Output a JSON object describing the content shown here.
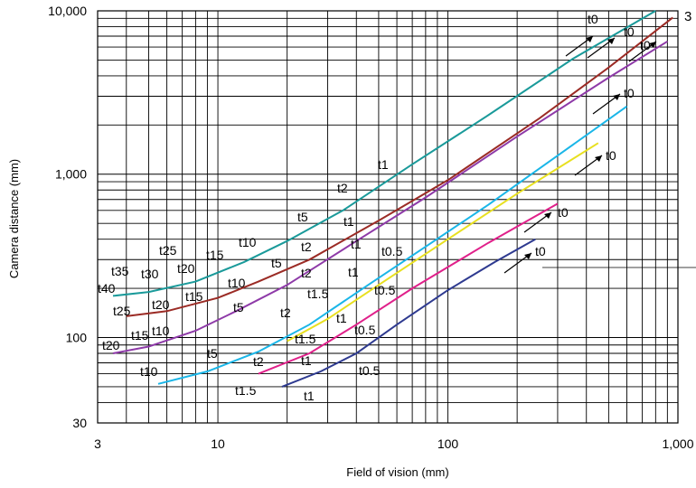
{
  "chart_data": {
    "type": "line",
    "title": "",
    "xlabel": "Field of vision (mm)",
    "ylabel": "Camera distance (mm)",
    "xscale": "log",
    "yscale": "log",
    "xlim": [
      3,
      1000
    ],
    "ylim": [
      30,
      10000
    ],
    "x_ticks": [
      3,
      10,
      100,
      1000
    ],
    "x_tick_labels": [
      "3",
      "10",
      "100",
      "1,000"
    ],
    "y_ticks": [
      30,
      100,
      1000,
      10000
    ],
    "y_tick_labels": [
      "30",
      "100",
      "1,000",
      "10,000"
    ],
    "grid": true,
    "corner_label": "3",
    "series": [
      {
        "color": "#1a9a9a",
        "x": [
          3.5,
          5,
          8,
          13,
          20,
          35,
          70,
          150,
          350,
          800
        ],
        "y": [
          180,
          190,
          220,
          290,
          390,
          600,
          1150,
          2300,
          5100,
          10000
        ]
      },
      {
        "color": "#9b2b25",
        "x": [
          4,
          6,
          10,
          15,
          25,
          50,
          100,
          250,
          500,
          950
        ],
        "y": [
          135,
          145,
          175,
          220,
          300,
          520,
          920,
          2200,
          4500,
          9100
        ]
      },
      {
        "color": "#8e3aa8",
        "x": [
          3.5,
          5,
          8,
          12,
          20,
          40,
          80,
          200,
          500,
          900
        ],
        "y": [
          80,
          88,
          110,
          145,
          210,
          390,
          720,
          1700,
          3900,
          6500
        ]
      },
      {
        "color": "#1ab6e8",
        "x": [
          5.5,
          9,
          15,
          25,
          45,
          80,
          150,
          300,
          600
        ],
        "y": [
          52,
          62,
          82,
          120,
          210,
          360,
          650,
          1300,
          2600
        ]
      },
      {
        "color": "#e8e020",
        "x": [
          20,
          30,
          50,
          100,
          200,
          450
        ],
        "y": [
          95,
          130,
          210,
          400,
          760,
          1550
        ]
      },
      {
        "color": "#e0208a",
        "x": [
          15,
          25,
          40,
          70,
          150,
          300
        ],
        "y": [
          60,
          80,
          120,
          200,
          380,
          660
        ]
      },
      {
        "color": "#2e3a90",
        "x": [
          19,
          28,
          40,
          60,
          100,
          160,
          240
        ],
        "y": [
          50,
          62,
          80,
          120,
          195,
          290,
          400
        ]
      }
    ],
    "annotations": [
      "t0",
      "t0",
      "t0",
      "t0",
      "t0",
      "t0",
      "t0",
      "t0.5",
      "t0.5",
      "t0.5",
      "t0.5",
      "t1",
      "t1",
      "t1",
      "t1",
      "t1",
      "t1",
      "t1",
      "t1.5",
      "t1.5",
      "t1.5",
      "t2",
      "t2",
      "t2",
      "t2",
      "t2",
      "t5",
      "t5",
      "t5",
      "t5",
      "t10",
      "t10",
      "t10",
      "t10",
      "t15",
      "t15",
      "t15",
      "t20",
      "t20",
      "t20",
      "t25",
      "t25",
      "t30",
      "t35",
      "t40"
    ]
  }
}
